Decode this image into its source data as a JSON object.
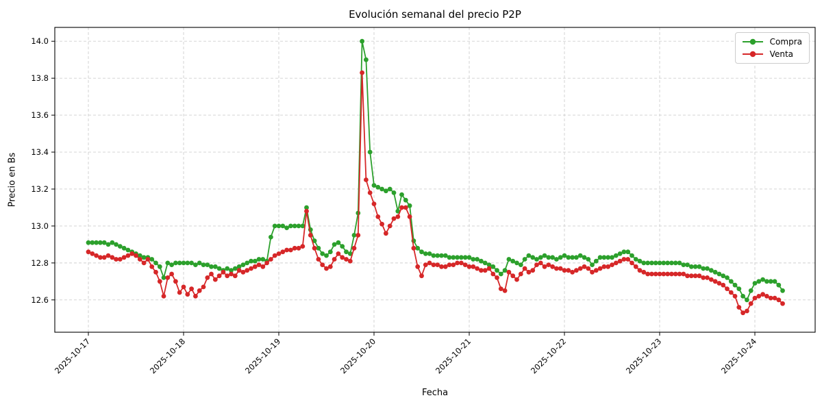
{
  "chart_data": {
    "type": "line",
    "title": "Evolución semanal del precio P2P",
    "xlabel": "Fecha",
    "ylabel": "Precio en Bs",
    "x_unit": "hourly samples starting 2025-10-17 00:00, 1 point per hour",
    "x_tick_labels": [
      "2025-10-17",
      "2025-10-18",
      "2025-10-19",
      "2025-10-20",
      "2025-10-21",
      "2025-10-22",
      "2025-10-23",
      "2025-10-24"
    ],
    "y_ticks": [
      12.6,
      12.8,
      13.0,
      13.2,
      13.4,
      13.6,
      13.8,
      14.0
    ],
    "ylim": [
      12.425,
      14.075
    ],
    "grid": true,
    "grid_style": "dashed",
    "legend_position": "upper right",
    "marker": "o",
    "series": [
      {
        "name": "Compra",
        "color": "#2ca02c",
        "values": [
          12.91,
          12.91,
          12.91,
          12.91,
          12.91,
          12.9,
          12.91,
          12.9,
          12.89,
          12.88,
          12.87,
          12.86,
          12.85,
          12.84,
          12.83,
          12.83,
          12.82,
          12.8,
          12.78,
          12.72,
          12.8,
          12.79,
          12.8,
          12.8,
          12.8,
          12.8,
          12.8,
          12.79,
          12.8,
          12.79,
          12.79,
          12.78,
          12.78,
          12.77,
          12.76,
          12.77,
          12.76,
          12.77,
          12.78,
          12.79,
          12.8,
          12.81,
          12.81,
          12.82,
          12.82,
          12.81,
          12.94,
          13.0,
          13.0,
          13.0,
          12.99,
          13.0,
          13.0,
          13.0,
          13.0,
          13.1,
          12.98,
          12.92,
          12.88,
          12.85,
          12.84,
          12.86,
          12.9,
          12.91,
          12.89,
          12.86,
          12.85,
          12.95,
          13.07,
          14.0,
          13.9,
          13.4,
          13.22,
          13.21,
          13.2,
          13.19,
          13.2,
          13.18,
          13.08,
          13.17,
          13.14,
          13.11,
          12.92,
          12.88,
          12.86,
          12.85,
          12.85,
          12.84,
          12.84,
          12.84,
          12.84,
          12.83,
          12.83,
          12.83,
          12.83,
          12.83,
          12.83,
          12.82,
          12.82,
          12.81,
          12.8,
          12.79,
          12.78,
          12.76,
          12.74,
          12.76,
          12.82,
          12.81,
          12.8,
          12.79,
          12.82,
          12.84,
          12.83,
          12.82,
          12.83,
          12.84,
          12.83,
          12.83,
          12.82,
          12.83,
          12.84,
          12.83,
          12.83,
          12.83,
          12.84,
          12.83,
          12.82,
          12.79,
          12.81,
          12.83,
          12.83,
          12.83,
          12.83,
          12.84,
          12.85,
          12.86,
          12.86,
          12.84,
          12.82,
          12.81,
          12.8,
          12.8,
          12.8,
          12.8,
          12.8,
          12.8,
          12.8,
          12.8,
          12.8,
          12.8,
          12.79,
          12.79,
          12.78,
          12.78,
          12.78,
          12.77,
          12.77,
          12.76,
          12.75,
          12.74,
          12.73,
          12.72,
          12.7,
          12.68,
          12.66,
          12.62,
          12.6,
          12.65,
          12.69,
          12.7,
          12.71,
          12.7,
          12.7,
          12.7,
          12.68,
          12.65
        ]
      },
      {
        "name": "Venta",
        "color": "#d62728",
        "values": [
          12.86,
          12.85,
          12.84,
          12.83,
          12.83,
          12.84,
          12.83,
          12.82,
          12.82,
          12.83,
          12.84,
          12.85,
          12.84,
          12.82,
          12.8,
          12.82,
          12.78,
          12.75,
          12.7,
          12.62,
          12.72,
          12.74,
          12.7,
          12.64,
          12.67,
          12.63,
          12.66,
          12.62,
          12.65,
          12.67,
          12.72,
          12.74,
          12.71,
          12.73,
          12.75,
          12.73,
          12.74,
          12.73,
          12.76,
          12.75,
          12.76,
          12.77,
          12.78,
          12.79,
          12.78,
          12.8,
          12.82,
          12.84,
          12.85,
          12.86,
          12.87,
          12.87,
          12.88,
          12.88,
          12.89,
          13.08,
          12.95,
          12.88,
          12.82,
          12.79,
          12.77,
          12.78,
          12.82,
          12.85,
          12.83,
          12.82,
          12.81,
          12.88,
          12.95,
          13.83,
          13.25,
          13.18,
          13.12,
          13.05,
          13.01,
          12.96,
          13.0,
          13.04,
          13.05,
          13.1,
          13.1,
          13.05,
          12.88,
          12.78,
          12.73,
          12.79,
          12.8,
          12.79,
          12.79,
          12.78,
          12.78,
          12.79,
          12.79,
          12.8,
          12.8,
          12.79,
          12.78,
          12.78,
          12.77,
          12.76,
          12.76,
          12.77,
          12.74,
          12.72,
          12.66,
          12.65,
          12.75,
          12.73,
          12.71,
          12.74,
          12.77,
          12.75,
          12.76,
          12.79,
          12.8,
          12.78,
          12.79,
          12.78,
          12.77,
          12.77,
          12.76,
          12.76,
          12.75,
          12.76,
          12.77,
          12.78,
          12.77,
          12.75,
          12.76,
          12.77,
          12.78,
          12.78,
          12.79,
          12.8,
          12.81,
          12.82,
          12.82,
          12.8,
          12.78,
          12.76,
          12.75,
          12.74,
          12.74,
          12.74,
          12.74,
          12.74,
          12.74,
          12.74,
          12.74,
          12.74,
          12.74,
          12.73,
          12.73,
          12.73,
          12.73,
          12.72,
          12.72,
          12.71,
          12.7,
          12.69,
          12.68,
          12.66,
          12.64,
          12.62,
          12.56,
          12.53,
          12.54,
          12.58,
          12.61,
          12.62,
          12.63,
          12.62,
          12.61,
          12.61,
          12.6,
          12.58
        ]
      }
    ]
  }
}
